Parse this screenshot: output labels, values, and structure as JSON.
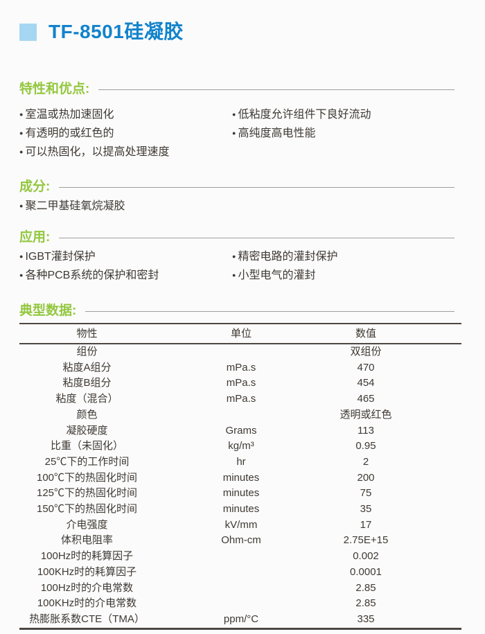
{
  "page": {
    "title": "TF-8501硅凝胶"
  },
  "sections": {
    "features": {
      "heading": "特性和优点:",
      "bullets_left": [
        "室温或热加速固化",
        "有透明的或红色的",
        "可以热固化，以提高处理速度"
      ],
      "bullets_right": [
        "低粘度允许组件下良好流动",
        "高纯度高电性能"
      ]
    },
    "composition": {
      "heading": "成分:",
      "bullets_left": [
        "聚二甲基硅氧烷凝胶"
      ],
      "bullets_right": []
    },
    "applications": {
      "heading": "应用:",
      "bullets_left": [
        "IGBT灌封保护",
        "各种PCB系统的保护和密封"
      ],
      "bullets_right": [
        "精密电路的灌封保护",
        "小型电气的灌封"
      ]
    },
    "typical_data": {
      "heading": "典型数据:"
    }
  },
  "table": {
    "headers": [
      "物性",
      "单位",
      "数值"
    ],
    "rows": [
      [
        "组份",
        "",
        "双组份"
      ],
      [
        "粘度A组分",
        "mPa.s",
        "470"
      ],
      [
        "粘度B组分",
        "mPa.s",
        "454"
      ],
      [
        "粘度（混合）",
        "mPa.s",
        "465"
      ],
      [
        "颜色",
        "",
        "透明或红色"
      ],
      [
        "凝胶硬度",
        "Grams",
        "113"
      ],
      [
        "比重（未固化）",
        "kg/m³",
        "0.95"
      ],
      [
        "25℃下的工作时间",
        "hr",
        "2"
      ],
      [
        "100℃下的热固化时间",
        "minutes",
        "200"
      ],
      [
        "125℃下的热固化时间",
        "minutes",
        "75"
      ],
      [
        "150℃下的热固化时间",
        "minutes",
        "35"
      ],
      [
        "介电强度",
        "kV/mm",
        "17"
      ],
      [
        "体积电阻率",
        "Ohm-cm",
        "2.75E+15"
      ],
      [
        "100Hz时的耗算因子",
        "",
        "0.002"
      ],
      [
        "100KHz时的耗算因子",
        "",
        "0.0001"
      ],
      [
        "100Hz时的介电常数",
        "",
        "2.85"
      ],
      [
        "100KHz时的介电常数",
        "",
        "2.85"
      ],
      [
        "热膨胀系数CTE（TMA）",
        "ppm/°C",
        "335"
      ]
    ]
  },
  "colors": {
    "accent_green": "#93c73e",
    "title_blue": "#1283cb",
    "square_blue": "#a5d7f2",
    "rule_gray": "#a09e9c",
    "table_border": "#4c4743",
    "text": "#3e3933",
    "background": "#fbfbfb"
  }
}
